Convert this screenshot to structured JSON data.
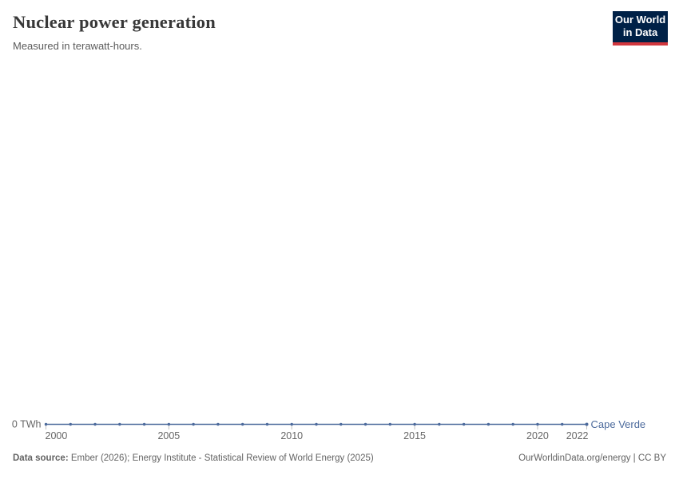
{
  "header": {
    "title": "Nuclear power generation",
    "subtitle": "Measured in terawatt-hours."
  },
  "logo": {
    "line1": "Our World",
    "line2": "in Data",
    "bg_color": "#002147",
    "accent_color": "#d1373e"
  },
  "chart_data": {
    "type": "line",
    "title": "Nuclear power generation",
    "subtitle": "Measured in terawatt-hours.",
    "unit": "TWh",
    "x": [
      2000,
      2001,
      2002,
      2003,
      2004,
      2005,
      2006,
      2007,
      2008,
      2009,
      2010,
      2011,
      2012,
      2013,
      2014,
      2015,
      2016,
      2017,
      2018,
      2019,
      2020,
      2021,
      2022
    ],
    "series": [
      {
        "name": "Cape Verde",
        "color": "#4c6a9c",
        "values": [
          0,
          0,
          0,
          0,
          0,
          0,
          0,
          0,
          0,
          0,
          0,
          0,
          0,
          0,
          0,
          0,
          0,
          0,
          0,
          0,
          0,
          0,
          0
        ]
      }
    ],
    "x_ticks": [
      2000,
      2005,
      2010,
      2015,
      2020,
      2022
    ],
    "y_ticks": [
      {
        "value": 0,
        "label": "0 TWh"
      }
    ],
    "xlim": [
      2000,
      2022
    ],
    "ylim": [
      0,
      0
    ],
    "grid": false,
    "legend_position": "end-of-line"
  },
  "footer": {
    "source_label": "Data source:",
    "source_text": "Ember (2026); Energy Institute - Statistical Review of World Energy (2025)",
    "link": "OurWorldinData.org/energy | CC BY"
  }
}
